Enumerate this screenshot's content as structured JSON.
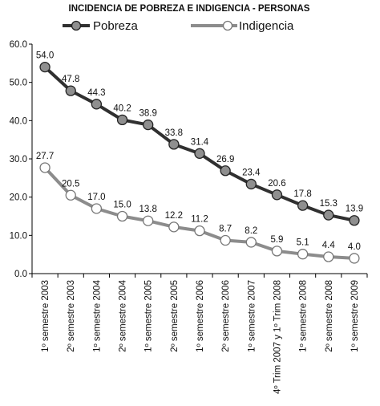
{
  "chart_data": {
    "type": "line",
    "title": "INCIDENCIA DE POBREZA E INDIGENCIA - PERSONAS",
    "categories": [
      "1º semestre 2003",
      "2º semestre 2003",
      "1º semestre 2004",
      "2º semestre 2004",
      "1º semestre 2005",
      "2º semestre 2005",
      "1º semestre 2006",
      "2º semestre 2006",
      "1º semestre 2007",
      "4º Trim 2007 y 1º Trim 2008",
      "1º semestre 2008",
      "2º semestre 2008",
      "1º semestre 2009"
    ],
    "series": [
      {
        "name": "Pobreza",
        "color": "#303030",
        "marker": "#8f8f8f",
        "values": [
          54.0,
          47.8,
          44.3,
          40.2,
          38.9,
          33.8,
          31.4,
          26.9,
          23.4,
          20.6,
          17.8,
          15.3,
          13.9
        ],
        "labels": [
          "54.0",
          "47.8",
          "44.3",
          "40.2",
          "38.9",
          "33.8",
          "31.4",
          "26.9",
          "23.4",
          "20.6",
          "17.8",
          "15.3",
          "13.9"
        ]
      },
      {
        "name": "Indigencia",
        "color": "#8c8c8c",
        "marker": "#ffffff",
        "values": [
          27.7,
          20.5,
          17.0,
          15.0,
          13.8,
          12.2,
          11.2,
          8.7,
          8.2,
          5.9,
          5.1,
          4.4,
          4.0
        ],
        "labels": [
          "27.7",
          "20.5",
          "17.0",
          "15.0",
          "13.8",
          "12.2",
          "11.2",
          "8.7",
          "8.2",
          "5.9",
          "5.1",
          "4.4",
          "4.0"
        ]
      }
    ],
    "ylim": [
      0,
      60
    ],
    "yticks": [
      "0.0",
      "10.0",
      "20.0",
      "30.0",
      "40.0",
      "50.0",
      "60.0"
    ],
    "legend_position": "top",
    "grid": false
  }
}
